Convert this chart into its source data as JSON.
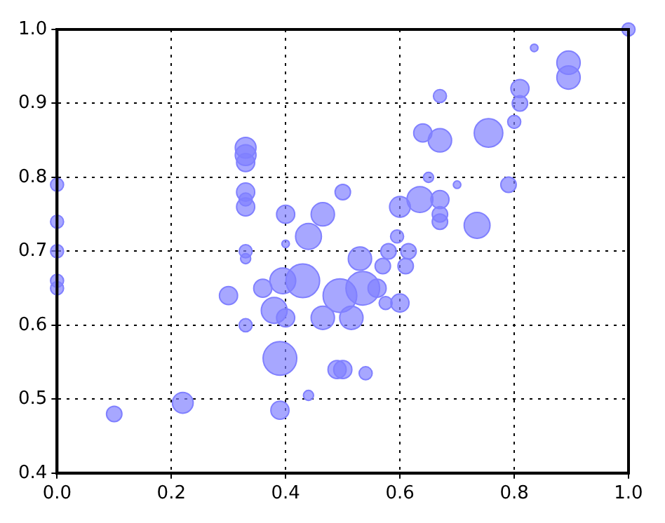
{
  "chart_data": {
    "type": "bubble",
    "x": [
      0.0,
      0.0,
      0.0,
      0.0,
      0.0,
      0.1,
      0.22,
      0.3,
      0.33,
      0.33,
      0.33,
      0.33,
      0.33,
      0.33,
      0.33,
      0.33,
      0.33,
      0.36,
      0.38,
      0.39,
      0.39,
      0.4,
      0.4,
      0.395,
      0.43,
      0.4,
      0.44,
      0.44,
      0.465,
      0.465,
      0.495,
      0.5,
      0.49,
      0.54,
      0.53,
      0.57,
      0.535,
      0.56,
      0.575,
      0.6,
      0.515,
      0.58,
      0.615,
      0.61,
      0.67,
      0.64,
      0.67,
      0.755,
      0.81,
      0.81,
      0.8,
      0.835,
      0.895,
      0.895,
      1.0,
      0.5,
      0.65,
      0.7,
      0.79,
      0.6,
      0.635,
      0.67,
      0.67,
      0.67,
      0.735,
      0.595
    ],
    "values": [
      0.79,
      0.74,
      0.7,
      0.66,
      0.65,
      0.48,
      0.495,
      0.64,
      0.6,
      0.7,
      0.69,
      0.84,
      0.83,
      0.82,
      0.78,
      0.77,
      0.76,
      0.65,
      0.62,
      0.555,
      0.485,
      0.75,
      0.71,
      0.66,
      0.66,
      0.61,
      0.505,
      0.72,
      0.75,
      0.61,
      0.64,
      0.54,
      0.54,
      0.535,
      0.69,
      0.68,
      0.65,
      0.65,
      0.63,
      0.63,
      0.61,
      0.7,
      0.7,
      0.68,
      0.91,
      0.86,
      0.85,
      0.86,
      0.92,
      0.9,
      0.875,
      0.975,
      0.955,
      0.935,
      1.0,
      0.78,
      0.8,
      0.79,
      0.79,
      0.76,
      0.77,
      0.77,
      0.75,
      0.74,
      0.735,
      0.72
    ],
    "sizes": [
      0.15,
      0.15,
      0.15,
      0.15,
      0.15,
      0.21,
      0.38,
      0.29,
      0.15,
      0.15,
      0.09,
      0.38,
      0.38,
      0.29,
      0.29,
      0.15,
      0.29,
      0.29,
      0.59,
      1.0,
      0.29,
      0.29,
      0.05,
      0.59,
      1.0,
      0.29,
      0.09,
      0.59,
      0.48,
      0.48,
      1.0,
      0.29,
      0.29,
      0.15,
      0.48,
      0.21,
      1.0,
      0.29,
      0.15,
      0.29,
      0.48,
      0.21,
      0.21,
      0.21,
      0.15,
      0.29,
      0.48,
      0.72,
      0.29,
      0.21,
      0.15,
      0.05,
      0.48,
      0.48,
      0.15,
      0.21,
      0.09,
      0.05,
      0.21,
      0.38,
      0.59,
      0.29,
      0.21,
      0.21,
      0.59,
      0.15
    ],
    "color": "#8080ff",
    "xlim": [
      0,
      1
    ],
    "xticks": [
      {
        "value": 0,
        "label": "0.0"
      },
      0.2,
      0.4,
      0.6,
      0.8,
      {
        "value": 1,
        "label": "1.0"
      }
    ],
    "ylim": [
      0.4,
      1.0
    ],
    "yticks": [
      0.4,
      0.5,
      0.6,
      0.7,
      0.8,
      0.9,
      {
        "value": 1,
        "label": "1.0"
      }
    ],
    "grid": true,
    "legend": false,
    "line_style": "dotted"
  }
}
